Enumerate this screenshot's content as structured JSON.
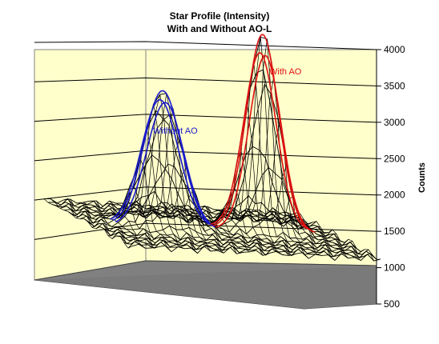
{
  "chart_data": {
    "type": "surface",
    "title": "Star Profile (Intensity)",
    "subtitle": "With and Without AO-L",
    "zlabel": "Counts",
    "zlim": [
      500,
      4000
    ],
    "z_ticks": [
      "500",
      "1000",
      "1500",
      "2000",
      "2500",
      "3000",
      "3500",
      "4000"
    ],
    "baseline": 1100,
    "grid": true,
    "series": [
      {
        "name": "Without AO",
        "peak": 3050,
        "color": "#1a1acc"
      },
      {
        "name": "With AO",
        "peak": 3900,
        "color": "#dd1111"
      }
    ],
    "colors": {
      "wall": "#ffffcc",
      "floor": "#808080",
      "mesh": "#000000"
    }
  }
}
